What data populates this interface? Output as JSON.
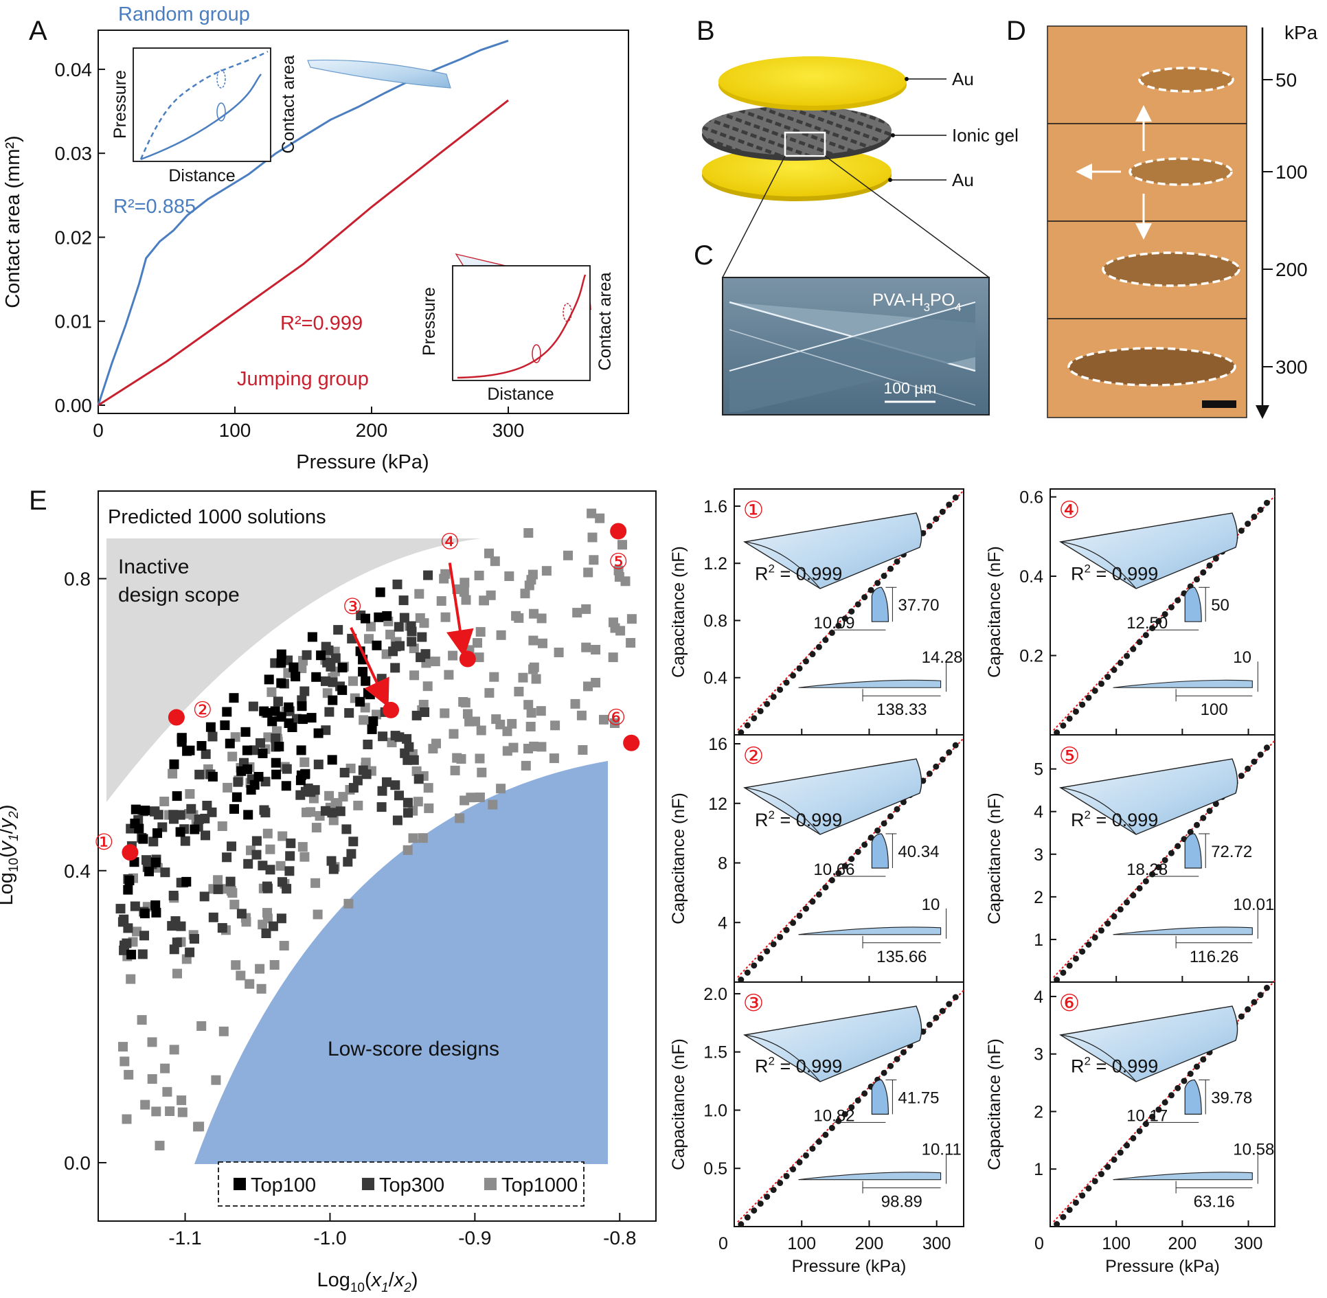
{
  "panel_letters": {
    "a": "A",
    "b": "B",
    "c": "C",
    "d": "D",
    "e": "E"
  },
  "panel_a": {
    "xlabel": "Pressure (kPa)",
    "ylabel": "Contact area (mm²)",
    "random_label": "Random group",
    "random_r2": "R²=0.885",
    "jumping_label": "Jumping group",
    "jumping_r2": "R²=0.999",
    "inset_random": {
      "xlabel": "Distance",
      "ylabel": "Pressure",
      "ylabel2": "Contact area"
    },
    "inset_jumping": {
      "xlabel": "Distance",
      "ylabel": "Pressure",
      "ylabel2": "Contact area"
    }
  },
  "panel_b": {
    "top_label": "Au",
    "mid_label": "Ionic gel",
    "bottom_label": "Au"
  },
  "panel_c": {
    "material_main": "PVA-H",
    "material_sub": "3",
    "material_main2": "PO",
    "material_sub2": "4",
    "scale_bar": "100 µm"
  },
  "panel_d": {
    "unit": "kPa",
    "levels": [
      "50",
      "100",
      "200",
      "300"
    ]
  },
  "panel_e": {
    "title": "Predicted 1000 solutions",
    "inactive_line1": "Inactive",
    "inactive_line2": "design scope",
    "lowscore": "Low-score designs",
    "legend": [
      "Top100",
      "Top300",
      "Top1000"
    ],
    "marker_labels": [
      "①",
      "②",
      "③",
      "④",
      "⑤",
      "⑥"
    ]
  },
  "colors": {
    "random_blue": "#4a7ec1",
    "jumping_red": "#c8202f",
    "marker_red": "#e8151b",
    "lowscore_fill": "#8eaedc",
    "inactive_fill": "#dadada",
    "gold": "#f5d80f"
  },
  "chart_data": [
    {
      "id": "A",
      "type": "line",
      "xlabel": "Pressure (kPa)",
      "ylabel": "Contact area (mm²)",
      "xlim": [
        0,
        300
      ],
      "ylim": [
        0,
        0.044
      ],
      "xticks": [
        0,
        100,
        200,
        300
      ],
      "yticks": [
        0.0,
        0.01,
        0.02,
        0.03,
        0.04
      ],
      "xtick_labels": [
        "0",
        "100",
        "200",
        "300"
      ],
      "ytick_labels": [
        "0.00",
        "0.01",
        "0.02",
        "0.03",
        "0.04"
      ],
      "series": [
        {
          "name": "Random group",
          "r2": "R²=0.885",
          "color": "#4a7ec1",
          "x": [
            0,
            10,
            20,
            30,
            35,
            45,
            55,
            65,
            80,
            95,
            110,
            130,
            150,
            170,
            190,
            210,
            230,
            250,
            265,
            280,
            300
          ],
          "y": [
            0,
            0.005,
            0.0095,
            0.0145,
            0.0175,
            0.0195,
            0.0208,
            0.0226,
            0.0245,
            0.026,
            0.0275,
            0.03,
            0.032,
            0.034,
            0.0355,
            0.0372,
            0.0388,
            0.0402,
            0.0412,
            0.0423,
            0.0434
          ]
        },
        {
          "name": "Jumping group",
          "r2": "R²=0.999",
          "color": "#c8202f",
          "x": [
            0,
            50,
            100,
            150,
            200,
            250,
            300
          ],
          "y": [
            0,
            0.0052,
            0.011,
            0.0168,
            0.0236,
            0.03,
            0.0363
          ]
        }
      ]
    },
    {
      "id": "E",
      "type": "scatter",
      "xlabel": "Log10(x1/x2)",
      "ylabel": "Log10(y1/y2)",
      "xlim": [
        -1.16,
        -0.775
      ],
      "ylim": [
        -0.08,
        0.92
      ],
      "xticks": [
        -1.1,
        -1.0,
        -0.9,
        -0.8
      ],
      "yticks": [
        0.0,
        0.4,
        0.8
      ],
      "xtick_labels": [
        "-1.1",
        "-1.0",
        "-0.9",
        "-0.8"
      ],
      "ytick_labels": [
        "0.0",
        "0.4",
        "0.8"
      ],
      "series": [
        {
          "name": "Top100",
          "color": "#000000"
        },
        {
          "name": "Top300",
          "color": "#3a3a3a"
        },
        {
          "name": "Top1000",
          "color": "#8c8c8c"
        }
      ],
      "selected_points": [
        {
          "label": "①",
          "x": -1.138,
          "y": 0.425
        },
        {
          "label": "②",
          "x": -1.106,
          "y": 0.61
        },
        {
          "label": "③",
          "x": -0.958,
          "y": 0.62
        },
        {
          "label": "④",
          "x": -0.905,
          "y": 0.69
        },
        {
          "label": "⑤",
          "x": -0.801,
          "y": 0.865
        },
        {
          "label": "⑥",
          "x": -0.792,
          "y": 0.575
        }
      ]
    },
    {
      "id": "E1",
      "type": "scatter",
      "label": "①",
      "xlabel": "Pressure (kPa)",
      "ylabel": "Capacitance (nF)",
      "r2": "R",
      "r2_sup": "2",
      "r2_val": " = 0.999",
      "xlim": [
        0,
        340
      ],
      "ylim": [
        0,
        1.72
      ],
      "yticks": [
        0.4,
        0.8,
        1.2,
        1.6
      ],
      "ytick_labels": [
        "0.4",
        "0.8",
        "1.2",
        "1.6"
      ],
      "xticks": [
        100,
        200,
        300
      ],
      "xtick_labels": [
        "100",
        "200",
        "300"
      ],
      "y_end": 1.66,
      "dims": [
        "37.70",
        "10.09",
        "14.28",
        "138.33"
      ]
    },
    {
      "id": "E2",
      "type": "scatter",
      "label": "②",
      "xlabel": "Pressure (kPa)",
      "ylabel": "Capacitance (nF)",
      "r2": "R",
      "r2_sup": "2",
      "r2_val": " = 0.999",
      "xlim": [
        0,
        340
      ],
      "ylim": [
        0,
        16.6
      ],
      "yticks": [
        4,
        8,
        12,
        16
      ],
      "ytick_labels": [
        "4",
        "8",
        "12",
        "16"
      ],
      "xticks": [
        100,
        200,
        300
      ],
      "xtick_labels": [
        "100",
        "200",
        "300"
      ],
      "y_end": 15.9,
      "dims": [
        "40.34",
        "10.66",
        "10",
        "135.66"
      ]
    },
    {
      "id": "E3",
      "type": "scatter",
      "label": "③",
      "xlabel": "Pressure (kPa)",
      "ylabel": "Capacitance (nF)",
      "r2": "R",
      "r2_sup": "2",
      "r2_val": " = 0.999",
      "xlim": [
        0,
        340
      ],
      "ylim": [
        0,
        2.1
      ],
      "yticks": [
        0.5,
        1.0,
        1.5,
        2.0
      ],
      "ytick_labels": [
        "0.5",
        "1.0",
        "1.5",
        "2.0"
      ],
      "xticks": [
        100,
        200,
        300
      ],
      "xtick_labels": [
        "100",
        "200",
        "300"
      ],
      "y_end": 1.97,
      "dims": [
        "41.75",
        "10.82",
        "10.11",
        "98.89"
      ],
      "show_zero": "0"
    },
    {
      "id": "E4",
      "type": "scatter",
      "label": "④",
      "xlabel": "Pressure (kPa)",
      "ylabel": "Capacitance (nF)",
      "r2": "R",
      "r2_sup": "2",
      "r2_val": " = 0.999",
      "xlim": [
        0,
        340
      ],
      "ylim": [
        0,
        0.62
      ],
      "yticks": [
        0.2,
        0.4,
        0.6
      ],
      "ytick_labels": [
        "0.2",
        "0.4",
        "0.6"
      ],
      "xticks": [
        100,
        200,
        300
      ],
      "xtick_labels": [
        "100",
        "200",
        "300"
      ],
      "y_end": 0.585,
      "dims": [
        "50",
        "12.50",
        "10",
        "100"
      ]
    },
    {
      "id": "E5",
      "type": "scatter",
      "label": "⑤",
      "xlabel": "Pressure (kPa)",
      "ylabel": "Capacitance (nF)",
      "r2": "R",
      "r2_sup": "2",
      "r2_val": " = 0.999",
      "xlim": [
        0,
        340
      ],
      "ylim": [
        0,
        5.8
      ],
      "yticks": [
        1,
        2,
        3,
        4,
        5
      ],
      "ytick_labels": [
        "1",
        "2",
        "3",
        "4",
        "5"
      ],
      "xticks": [
        100,
        200,
        300
      ],
      "xtick_labels": [
        "100",
        "200",
        "300"
      ],
      "y_end": 5.5,
      "dims": [
        "72.72",
        "18.28",
        "10.01",
        "116.26"
      ]
    },
    {
      "id": "E6",
      "type": "scatter",
      "label": "⑥",
      "xlabel": "Pressure (kPa)",
      "ylabel": "Capacitance (nF)",
      "r2": "R",
      "r2_sup": "2",
      "r2_val": " = 0.999",
      "xlim": [
        0,
        340
      ],
      "ylim": [
        0,
        4.25
      ],
      "yticks": [
        1,
        2,
        3,
        4
      ],
      "ytick_labels": [
        "1",
        "2",
        "3",
        "4"
      ],
      "xticks": [
        100,
        200,
        300
      ],
      "xtick_labels": [
        "100",
        "200",
        "300"
      ],
      "y_end": 4.15,
      "dims": [
        "39.78",
        "10.17",
        "10.58",
        "63.16"
      ],
      "show_zero": "0"
    }
  ]
}
